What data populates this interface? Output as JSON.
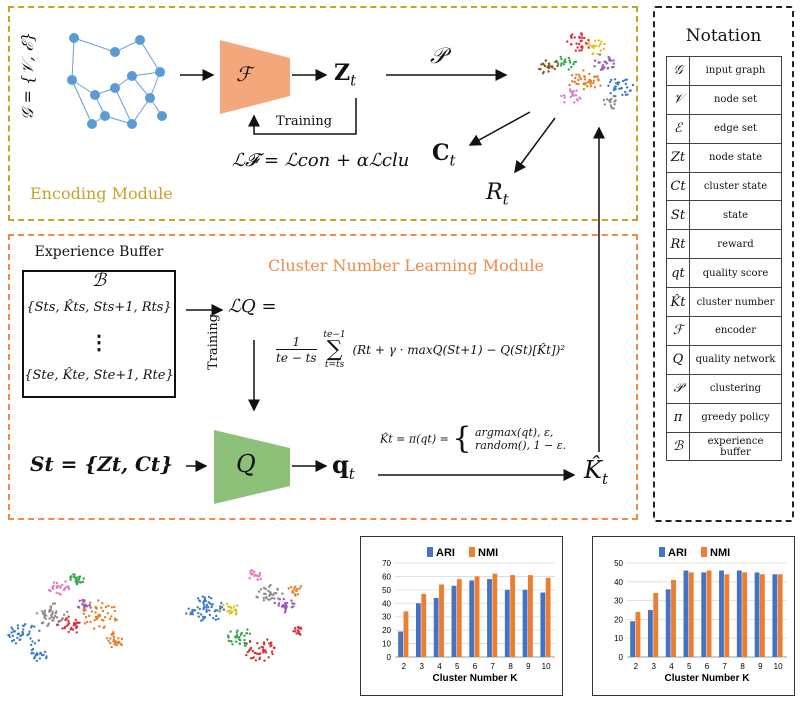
{
  "encoding_module": {
    "title": "Encoding Module",
    "graph_label": "𝒢 = {𝒱, ℰ}",
    "encoder_symbol": "ℱ",
    "z_label": "Z",
    "z_sub": "t",
    "p_symbol": "𝒫",
    "c_label": "C",
    "c_sub": "t",
    "r_label": "R",
    "r_sub": "t",
    "training_label": "Training",
    "loss_formula": "ℒ𝓕 = ℒcon + αℒclu",
    "colors": {
      "border": "#c9a227",
      "encoder": "#f4a77a"
    }
  },
  "cluster_module": {
    "title": "Cluster Number Learning Module",
    "buffer_label": "Experience Buffer",
    "buffer_symbol": "ℬ",
    "buffer_row1": "{Sts, K̂ts, Sts+1, Rts}",
    "buffer_dots": "⋮",
    "buffer_row2": "{Ste, K̂te, Ste+1, Rte}",
    "lq_label": "ℒQ =",
    "loss_fraction_num": "1",
    "loss_fraction_den": "te − ts",
    "loss_sum_top": "te−1",
    "loss_sum_bottom": "t=ts",
    "loss_body": "(Rt + γ · maxQ(St+1) − Q(St)[K̂t])²",
    "training_label": "Training",
    "state_label": "St = {Zt, Ct}",
    "q_symbol": "Q",
    "qt_label": "q",
    "qt_sub": "t",
    "policy_lhs": "K̂t = π(qt) =",
    "policy_case1": "argmax(qt),   ε,",
    "policy_case2": "random(), 1 − ε.",
    "khat_label": "K̂",
    "khat_sub": "t",
    "colors": {
      "border": "#f08a4b",
      "qnet": "#8dc17a"
    }
  },
  "notation": {
    "title": "Notation",
    "rows": [
      {
        "sym": "𝒢",
        "desc": "input graph"
      },
      {
        "sym": "𝒱",
        "desc": "node set"
      },
      {
        "sym": "ℰ",
        "desc": "edge set"
      },
      {
        "sym": "Zt",
        "desc": "node state"
      },
      {
        "sym": "Ct",
        "desc": "cluster state"
      },
      {
        "sym": "St",
        "desc": "state"
      },
      {
        "sym": "Rt",
        "desc": "reward"
      },
      {
        "sym": "qt",
        "desc": "quality score"
      },
      {
        "sym": "K̂t",
        "desc": "cluster number"
      },
      {
        "sym": "ℱ",
        "desc": "encoder"
      },
      {
        "sym": "Q",
        "desc": "quality network"
      },
      {
        "sym": "𝒫",
        "desc": "clustering"
      },
      {
        "sym": "π",
        "desc": "greedy policy"
      },
      {
        "sym": "ℬ",
        "desc": "experience buffer"
      }
    ]
  },
  "chart_data": [
    {
      "type": "bar",
      "categories": [
        "2",
        "3",
        "4",
        "5",
        "6",
        "7",
        "8",
        "9",
        "10"
      ],
      "series": [
        {
          "name": "ARI",
          "values": [
            19,
            40,
            44,
            53,
            57,
            58,
            50,
            50,
            48
          ]
        },
        {
          "name": "NMI",
          "values": [
            34,
            47,
            54,
            58,
            60,
            62,
            61,
            61,
            59
          ]
        }
      ],
      "xlabel": "Cluster Number K",
      "ylim": [
        0,
        70
      ],
      "yticks": [
        0,
        10,
        20,
        30,
        40,
        50,
        60,
        70
      ],
      "grid": true,
      "legend": "top",
      "colors": {
        "ARI": "#4472c4",
        "NMI": "#ed7d31"
      }
    },
    {
      "type": "bar",
      "categories": [
        "2",
        "3",
        "4",
        "5",
        "6",
        "7",
        "8",
        "9",
        "10"
      ],
      "series": [
        {
          "name": "ARI",
          "values": [
            19,
            25,
            36,
            46,
            45,
            46,
            46,
            45,
            44
          ]
        },
        {
          "name": "NMI",
          "values": [
            24,
            34,
            41,
            45,
            46,
            44,
            45,
            44,
            44
          ]
        }
      ],
      "xlabel": "Cluster Number K",
      "ylim": [
        0,
        50
      ],
      "yticks": [
        0,
        10,
        20,
        30,
        40,
        50
      ],
      "grid": true,
      "legend": "top",
      "colors": {
        "ARI": "#4472c4",
        "NMI": "#ed7d31"
      }
    }
  ],
  "scatter_colors": [
    "#3a7bc8",
    "#e87c23",
    "#8a8a8a",
    "#d6333a",
    "#3aa64a",
    "#9b59b6",
    "#d9c21a",
    "#8b5a2b",
    "#e377c2",
    "#17becf"
  ]
}
